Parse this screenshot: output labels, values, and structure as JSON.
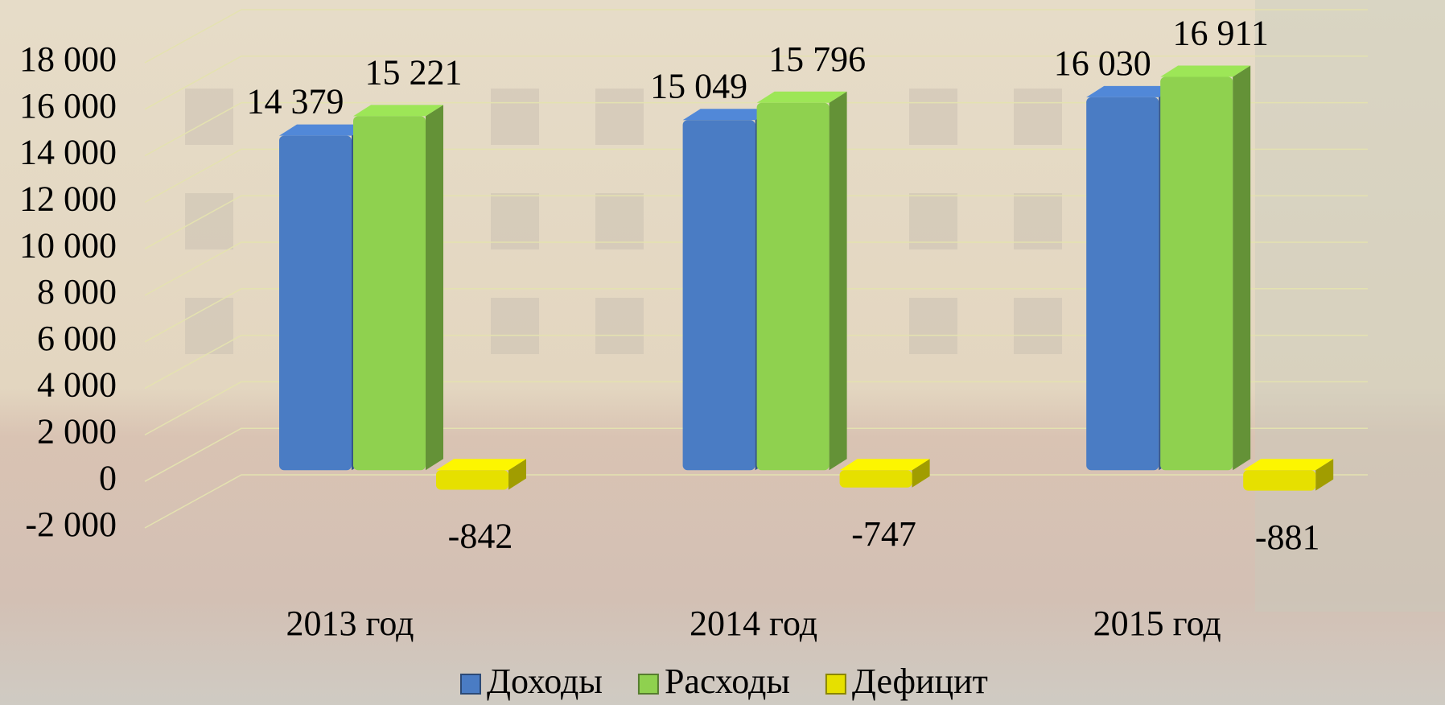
{
  "chart_data": {
    "type": "bar3d",
    "categories": [
      "2013 год",
      "2014 год",
      "2015 год"
    ],
    "series": [
      {
        "name": "Доходы",
        "color": "#4a7cc4",
        "values": [
          14379,
          15049,
          16030
        ],
        "value_labels": [
          "14 379",
          "15 049",
          "16 030"
        ]
      },
      {
        "name": "Расходы",
        "color": "#8fd14f",
        "values": [
          15221,
          15796,
          16911
        ],
        "value_labels": [
          "15 221",
          "15 796",
          "16 911"
        ]
      },
      {
        "name": "Дефицит",
        "color": "#e6e000",
        "values": [
          -842,
          -747,
          -881
        ],
        "value_labels": [
          "-842",
          "-747",
          "-881"
        ]
      }
    ],
    "ylim": [
      -2000,
      18000
    ],
    "yticks": [
      {
        "value": -2000,
        "label": "-2 000"
      },
      0,
      {
        "value": 2000,
        "label": "2 000"
      },
      {
        "value": 4000,
        "label": "4 000"
      },
      {
        "value": 6000,
        "label": "6 000"
      },
      {
        "value": 8000,
        "label": "8 000"
      },
      {
        "value": 10000,
        "label": "10 000"
      },
      {
        "value": 12000,
        "label": "12 000"
      },
      {
        "value": 14000,
        "label": "14 000"
      },
      {
        "value": 16000,
        "label": "16 000"
      },
      {
        "value": 18000,
        "label": "18 000"
      }
    ],
    "grid": true,
    "legend": "bottom"
  }
}
